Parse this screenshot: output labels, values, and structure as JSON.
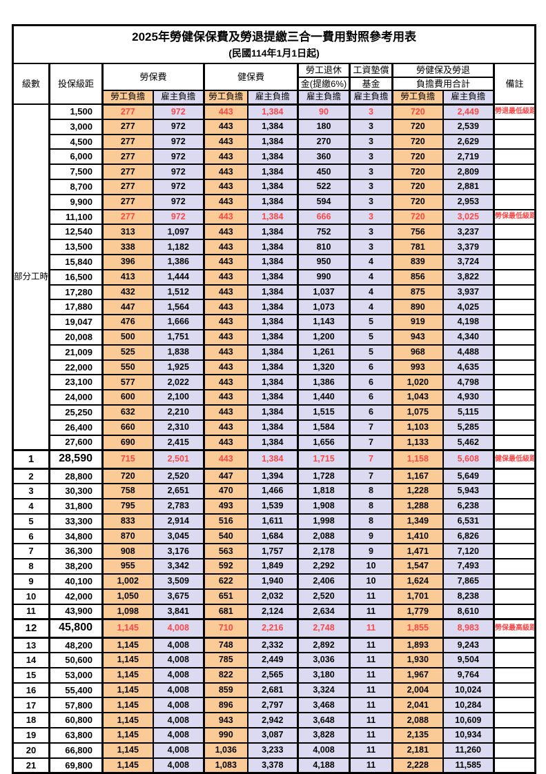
{
  "title": "2025年勞健保保費及勞退提繳三合一費用對照參考用表",
  "subtitle": "(民國114年1月1日起)",
  "header": {
    "level": "級數",
    "bracket": "投保級距",
    "labor_insurance": "勞保費",
    "health_insurance": "健保費",
    "pension_line1": "勞工退休",
    "pension_line2": "金(提繳6%)",
    "wage_fund_line1": "工資墊償",
    "wage_fund_line2": "基金",
    "total_line1": "勞健保及勞退",
    "total_line2": "負擔費用合計",
    "remark": "備註",
    "burden": [
      "勞工負擔",
      "雇主負擔",
      "勞工負擔",
      "雇主負擔",
      "雇主負擔",
      "雇主負擔",
      "勞工負擔",
      "雇主負擔"
    ]
  },
  "part_time": {
    "label": "部分工時",
    "rowspan": 23
  },
  "colors": {
    "employee_bg": "#FBCB97",
    "employer_bg": "#DCDAF0",
    "highlight_text": "#FB4747"
  },
  "rows": [
    {
      "level": "",
      "bracket": "1,500",
      "values": [
        "277",
        "972",
        "443",
        "1,384",
        "90",
        "3",
        "720",
        "2,449"
      ],
      "remark": "勞退最低級距",
      "red": true,
      "em": false
    },
    {
      "level": "",
      "bracket": "3,000",
      "values": [
        "277",
        "972",
        "443",
        "1,384",
        "180",
        "3",
        "720",
        "2,539"
      ],
      "remark": "",
      "red": false,
      "em": false
    },
    {
      "level": "",
      "bracket": "4,500",
      "values": [
        "277",
        "972",
        "443",
        "1,384",
        "270",
        "3",
        "720",
        "2,629"
      ],
      "remark": "",
      "red": false,
      "em": false
    },
    {
      "level": "",
      "bracket": "6,000",
      "values": [
        "277",
        "972",
        "443",
        "1,384",
        "360",
        "3",
        "720",
        "2,719"
      ],
      "remark": "",
      "red": false,
      "em": false
    },
    {
      "level": "",
      "bracket": "7,500",
      "values": [
        "277",
        "972",
        "443",
        "1,384",
        "450",
        "3",
        "720",
        "2,809"
      ],
      "remark": "",
      "red": false,
      "em": false
    },
    {
      "level": "",
      "bracket": "8,700",
      "values": [
        "277",
        "972",
        "443",
        "1,384",
        "522",
        "3",
        "720",
        "2,881"
      ],
      "remark": "",
      "red": false,
      "em": false
    },
    {
      "level": "",
      "bracket": "9,900",
      "values": [
        "277",
        "972",
        "443",
        "1,384",
        "594",
        "3",
        "720",
        "2,953"
      ],
      "remark": "",
      "red": false,
      "em": false
    },
    {
      "level": "",
      "bracket": "11,100",
      "values": [
        "277",
        "972",
        "443",
        "1,384",
        "666",
        "3",
        "720",
        "3,025"
      ],
      "remark": "勞保最低級距",
      "red": true,
      "em": false
    },
    {
      "level": "",
      "bracket": "12,540",
      "values": [
        "313",
        "1,097",
        "443",
        "1,384",
        "752",
        "3",
        "756",
        "3,237"
      ],
      "remark": "",
      "red": false,
      "em": false
    },
    {
      "level": "",
      "bracket": "13,500",
      "values": [
        "338",
        "1,182",
        "443",
        "1,384",
        "810",
        "3",
        "781",
        "3,379"
      ],
      "remark": "",
      "red": false,
      "em": false
    },
    {
      "level": "",
      "bracket": "15,840",
      "values": [
        "396",
        "1,386",
        "443",
        "1,384",
        "950",
        "4",
        "839",
        "3,724"
      ],
      "remark": "",
      "red": false,
      "em": false
    },
    {
      "level": "",
      "bracket": "16,500",
      "values": [
        "413",
        "1,444",
        "443",
        "1,384",
        "990",
        "4",
        "856",
        "3,822"
      ],
      "remark": "",
      "red": false,
      "em": false
    },
    {
      "level": "",
      "bracket": "17,280",
      "values": [
        "432",
        "1,512",
        "443",
        "1,384",
        "1,037",
        "4",
        "875",
        "3,937"
      ],
      "remark": "",
      "red": false,
      "em": false
    },
    {
      "level": "",
      "bracket": "17,880",
      "values": [
        "447",
        "1,564",
        "443",
        "1,384",
        "1,073",
        "4",
        "890",
        "4,025"
      ],
      "remark": "",
      "red": false,
      "em": false
    },
    {
      "level": "",
      "bracket": "19,047",
      "values": [
        "476",
        "1,666",
        "443",
        "1,384",
        "1,143",
        "5",
        "919",
        "4,198"
      ],
      "remark": "",
      "red": false,
      "em": false
    },
    {
      "level": "",
      "bracket": "20,008",
      "values": [
        "500",
        "1,751",
        "443",
        "1,384",
        "1,200",
        "5",
        "943",
        "4,340"
      ],
      "remark": "",
      "red": false,
      "em": false
    },
    {
      "level": "",
      "bracket": "21,009",
      "values": [
        "525",
        "1,838",
        "443",
        "1,384",
        "1,261",
        "5",
        "968",
        "4,488"
      ],
      "remark": "",
      "red": false,
      "em": false
    },
    {
      "level": "",
      "bracket": "22,000",
      "values": [
        "550",
        "1,925",
        "443",
        "1,384",
        "1,320",
        "6",
        "993",
        "4,635"
      ],
      "remark": "",
      "red": false,
      "em": false
    },
    {
      "level": "",
      "bracket": "23,100",
      "values": [
        "577",
        "2,022",
        "443",
        "1,384",
        "1,386",
        "6",
        "1,020",
        "4,798"
      ],
      "remark": "",
      "red": false,
      "em": false
    },
    {
      "level": "",
      "bracket": "24,000",
      "values": [
        "600",
        "2,100",
        "443",
        "1,384",
        "1,440",
        "6",
        "1,043",
        "4,930"
      ],
      "remark": "",
      "red": false,
      "em": false
    },
    {
      "level": "",
      "bracket": "25,250",
      "values": [
        "632",
        "2,210",
        "443",
        "1,384",
        "1,515",
        "6",
        "1,075",
        "5,115"
      ],
      "remark": "",
      "red": false,
      "em": false
    },
    {
      "level": "",
      "bracket": "26,400",
      "values": [
        "660",
        "2,310",
        "443",
        "1,384",
        "1,584",
        "7",
        "1,103",
        "5,285"
      ],
      "remark": "",
      "red": false,
      "em": false
    },
    {
      "level": "",
      "bracket": "27,600",
      "values": [
        "690",
        "2,415",
        "443",
        "1,384",
        "1,656",
        "7",
        "1,133",
        "5,462"
      ],
      "remark": "",
      "red": false,
      "em": false
    },
    {
      "level": "1",
      "bracket": "28,590",
      "values": [
        "715",
        "2,501",
        "443",
        "1,384",
        "1,715",
        "7",
        "1,158",
        "5,608"
      ],
      "remark": "健保最低級距",
      "red": true,
      "em": true
    },
    {
      "level": "2",
      "bracket": "28,800",
      "values": [
        "720",
        "2,520",
        "447",
        "1,394",
        "1,728",
        "7",
        "1,167",
        "5,649"
      ],
      "remark": "",
      "red": false,
      "em": false
    },
    {
      "level": "3",
      "bracket": "30,300",
      "values": [
        "758",
        "2,651",
        "470",
        "1,466",
        "1,818",
        "8",
        "1,228",
        "5,943"
      ],
      "remark": "",
      "red": false,
      "em": false
    },
    {
      "level": "4",
      "bracket": "31,800",
      "values": [
        "795",
        "2,783",
        "493",
        "1,539",
        "1,908",
        "8",
        "1,288",
        "6,238"
      ],
      "remark": "",
      "red": false,
      "em": false
    },
    {
      "level": "5",
      "bracket": "33,300",
      "values": [
        "833",
        "2,914",
        "516",
        "1,611",
        "1,998",
        "8",
        "1,349",
        "6,531"
      ],
      "remark": "",
      "red": false,
      "em": false
    },
    {
      "level": "6",
      "bracket": "34,800",
      "values": [
        "870",
        "3,045",
        "540",
        "1,684",
        "2,088",
        "9",
        "1,410",
        "6,826"
      ],
      "remark": "",
      "red": false,
      "em": false
    },
    {
      "level": "7",
      "bracket": "36,300",
      "values": [
        "908",
        "3,176",
        "563",
        "1,757",
        "2,178",
        "9",
        "1,471",
        "7,120"
      ],
      "remark": "",
      "red": false,
      "em": false
    },
    {
      "level": "8",
      "bracket": "38,200",
      "values": [
        "955",
        "3,342",
        "592",
        "1,849",
        "2,292",
        "10",
        "1,547",
        "7,493"
      ],
      "remark": "",
      "red": false,
      "em": false
    },
    {
      "level": "9",
      "bracket": "40,100",
      "values": [
        "1,002",
        "3,509",
        "622",
        "1,940",
        "2,406",
        "10",
        "1,624",
        "7,865"
      ],
      "remark": "",
      "red": false,
      "em": false
    },
    {
      "level": "10",
      "bracket": "42,000",
      "values": [
        "1,050",
        "3,675",
        "651",
        "2,032",
        "2,520",
        "11",
        "1,701",
        "8,238"
      ],
      "remark": "",
      "red": false,
      "em": false
    },
    {
      "level": "11",
      "bracket": "43,900",
      "values": [
        "1,098",
        "3,841",
        "681",
        "2,124",
        "2,634",
        "11",
        "1,779",
        "8,610"
      ],
      "remark": "",
      "red": false,
      "em": false
    },
    {
      "level": "12",
      "bracket": "45,800",
      "values": [
        "1,145",
        "4,008",
        "710",
        "2,216",
        "2,748",
        "11",
        "1,855",
        "8,983"
      ],
      "remark": "勞保最高級距",
      "red": true,
      "em": true
    },
    {
      "level": "13",
      "bracket": "48,200",
      "values": [
        "1,145",
        "4,008",
        "748",
        "2,332",
        "2,892",
        "11",
        "1,893",
        "9,243"
      ],
      "remark": "",
      "red": false,
      "em": false
    },
    {
      "level": "14",
      "bracket": "50,600",
      "values": [
        "1,145",
        "4,008",
        "785",
        "2,449",
        "3,036",
        "11",
        "1,930",
        "9,504"
      ],
      "remark": "",
      "red": false,
      "em": false
    },
    {
      "level": "15",
      "bracket": "53,000",
      "values": [
        "1,145",
        "4,008",
        "822",
        "2,565",
        "3,180",
        "11",
        "1,967",
        "9,764"
      ],
      "remark": "",
      "red": false,
      "em": false
    },
    {
      "level": "16",
      "bracket": "55,400",
      "values": [
        "1,145",
        "4,008",
        "859",
        "2,681",
        "3,324",
        "11",
        "2,004",
        "10,024"
      ],
      "remark": "",
      "red": false,
      "em": false
    },
    {
      "level": "17",
      "bracket": "57,800",
      "values": [
        "1,145",
        "4,008",
        "896",
        "2,797",
        "3,468",
        "11",
        "2,041",
        "10,284"
      ],
      "remark": "",
      "red": false,
      "em": false
    },
    {
      "level": "18",
      "bracket": "60,800",
      "values": [
        "1,145",
        "4,008",
        "943",
        "2,942",
        "3,648",
        "11",
        "2,088",
        "10,609"
      ],
      "remark": "",
      "red": false,
      "em": false
    },
    {
      "level": "19",
      "bracket": "63,800",
      "values": [
        "1,145",
        "4,008",
        "990",
        "3,087",
        "3,828",
        "11",
        "2,135",
        "10,934"
      ],
      "remark": "",
      "red": false,
      "em": false
    },
    {
      "level": "20",
      "bracket": "66,800",
      "values": [
        "1,145",
        "4,008",
        "1,036",
        "3,233",
        "4,008",
        "11",
        "2,181",
        "11,260"
      ],
      "remark": "",
      "red": false,
      "em": false
    },
    {
      "level": "21",
      "bracket": "69,800",
      "values": [
        "1,145",
        "4,008",
        "1,083",
        "3,378",
        "4,188",
        "11",
        "2,228",
        "11,585"
      ],
      "remark": "",
      "red": false,
      "em": false
    }
  ]
}
